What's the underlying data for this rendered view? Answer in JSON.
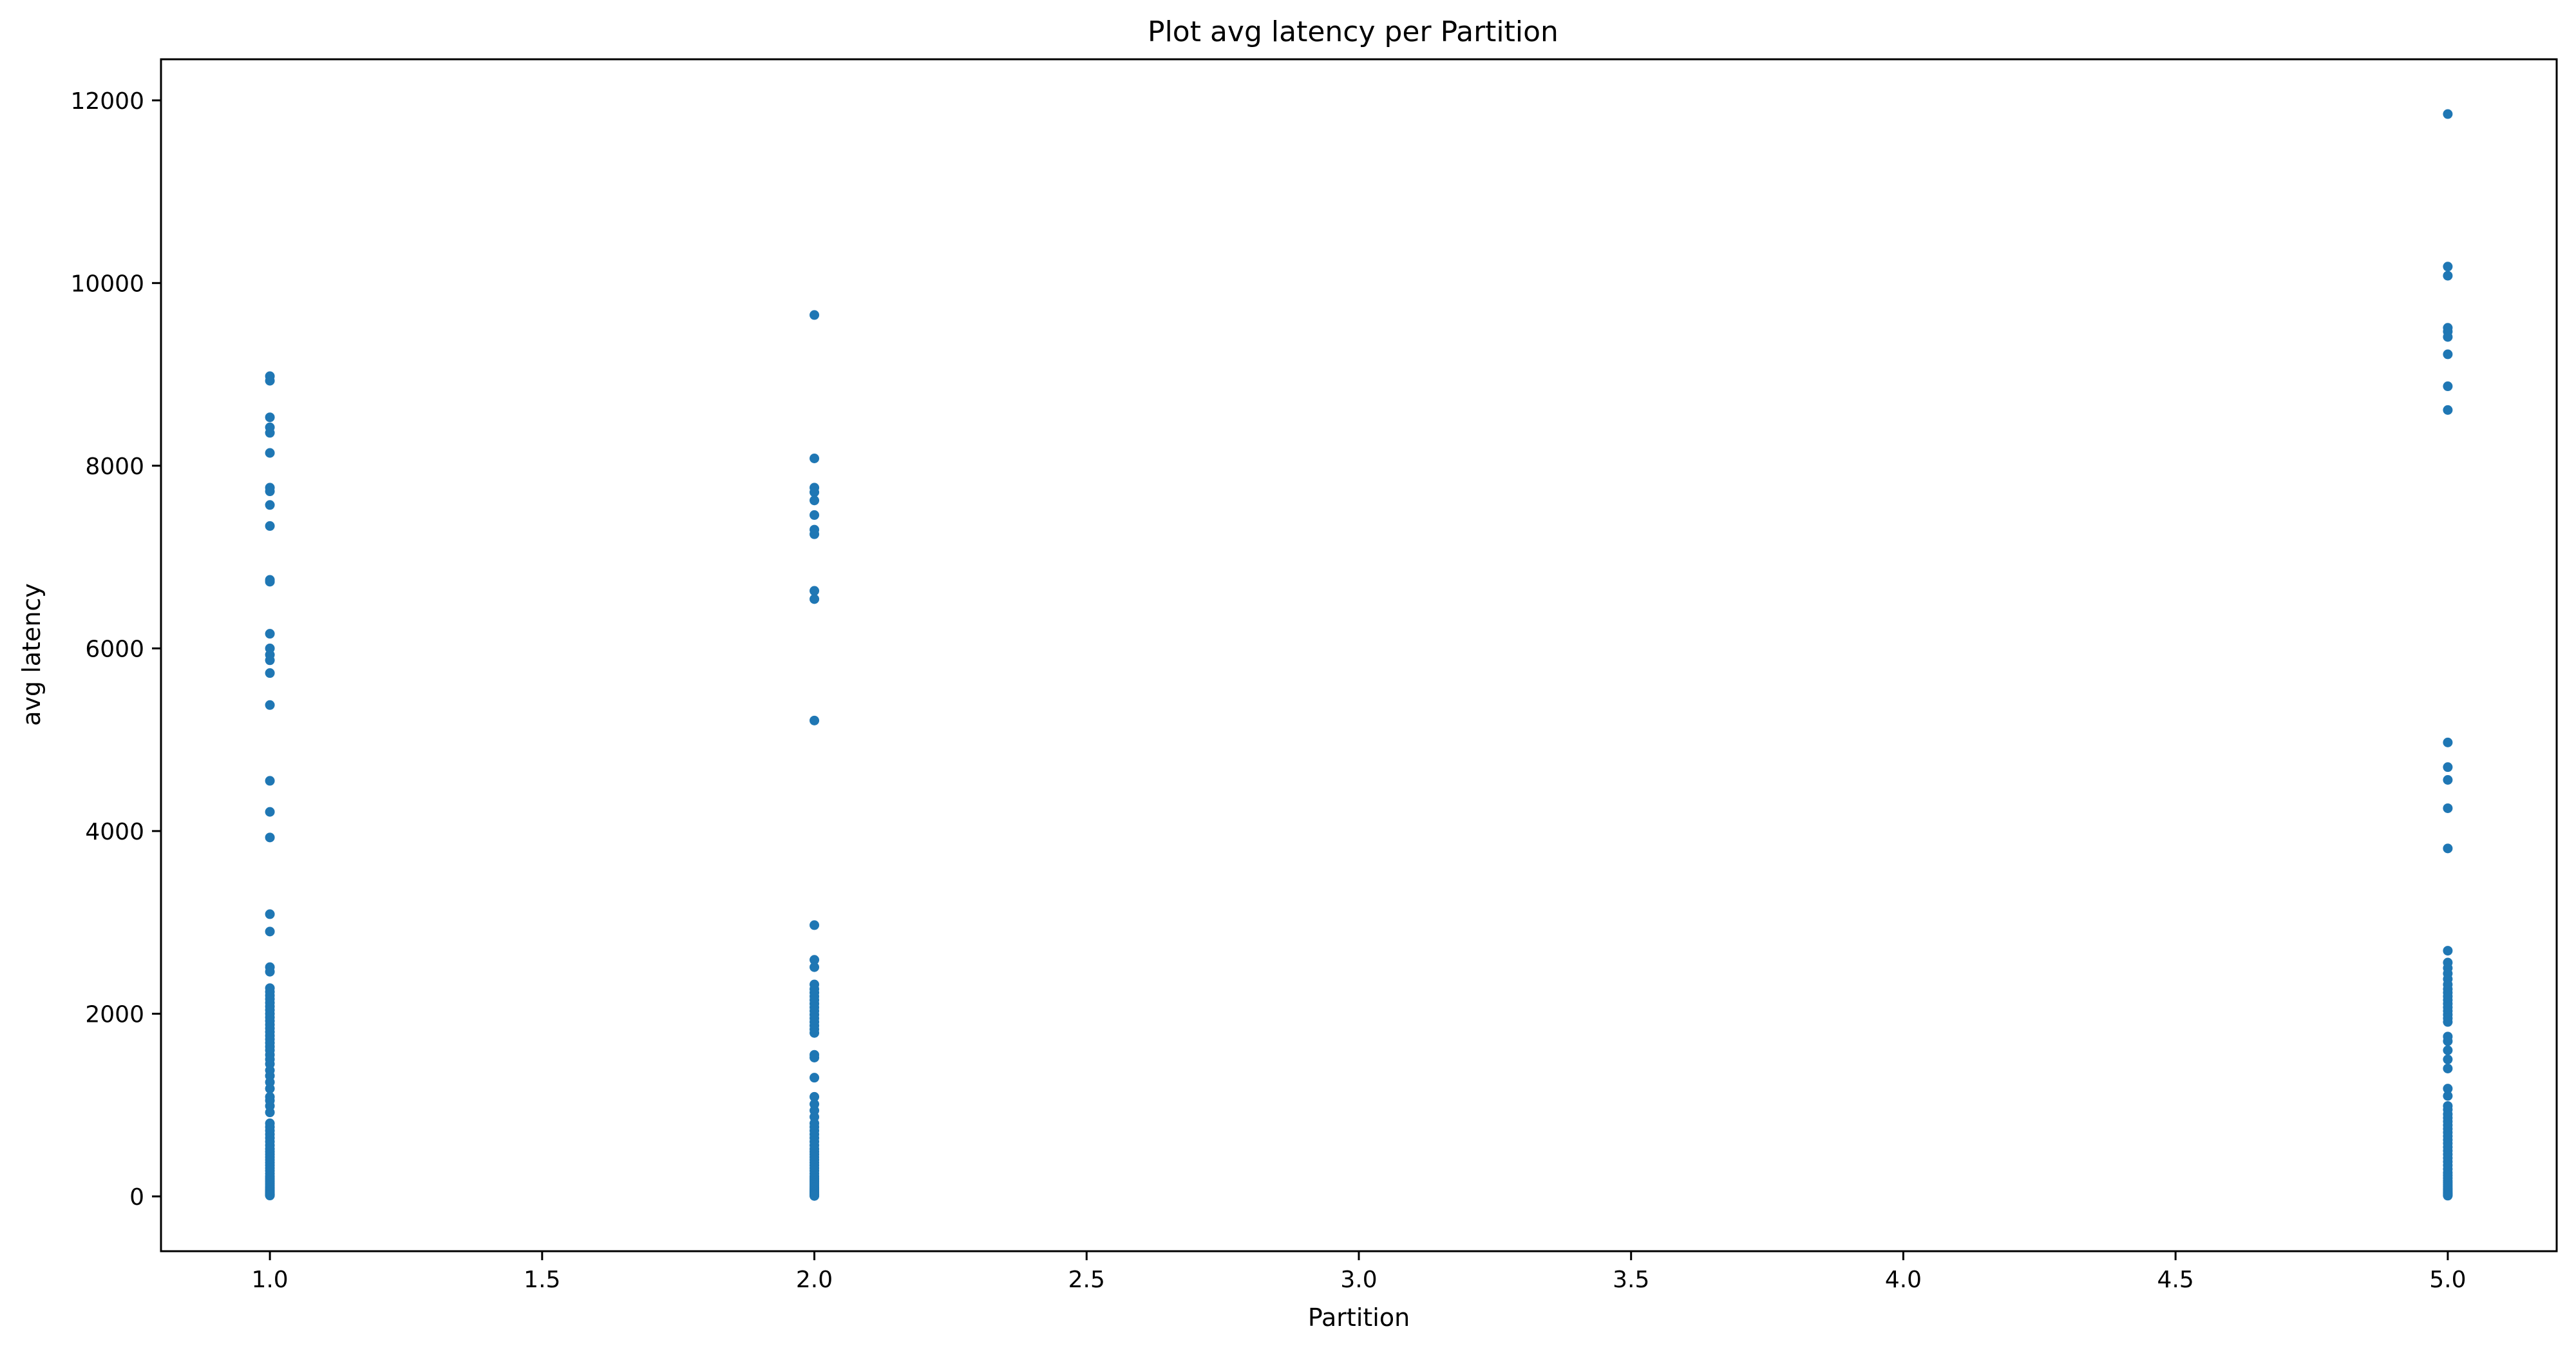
{
  "chart_data": {
    "type": "scatter",
    "title": "Plot avg latency per Partition",
    "xlabel": "Partition",
    "ylabel": "avg latency",
    "xlim": [
      0.8,
      5.2
    ],
    "ylim": [
      -600,
      12450
    ],
    "x_ticks": [
      "1.0",
      "1.5",
      "2.0",
      "2.5",
      "3.0",
      "3.5",
      "4.0",
      "4.5",
      "5.0"
    ],
    "y_ticks": [
      "0",
      "2000",
      "4000",
      "6000",
      "8000",
      "10000",
      "12000"
    ],
    "grid": false,
    "color": "#1f77b4",
    "series": [
      {
        "x": [
          1.0,
          1.0,
          1.0,
          1.0,
          1.0,
          1.0,
          1.0,
          1.0,
          1.0,
          1.0,
          1.0,
          1.0,
          1.0,
          1.0,
          1.0,
          1.0,
          1.0,
          1.0,
          1.0,
          1.0,
          1.0,
          1.0,
          1.0,
          1.0,
          1.0,
          1.0,
          1.0,
          1.0,
          1.0,
          1.0,
          1.0,
          1.0,
          1.0,
          1.0,
          1.0,
          1.0,
          1.0,
          1.0,
          1.0,
          1.0,
          1.0,
          1.0,
          1.0,
          1.0,
          1.0,
          1.0,
          1.0,
          1.0,
          1.0,
          1.0,
          1.0,
          1.0,
          1.0,
          1.0,
          1.0,
          1.0,
          1.0,
          1.0,
          1.0,
          1.0,
          1.0,
          1.0,
          1.0,
          1.0,
          1.0,
          1.0,
          1.0,
          1.0,
          1.0,
          1.0,
          1.0,
          1.0,
          1.0,
          1.0,
          1.0,
          1.0,
          1.0,
          1.0,
          1.0,
          1.0,
          1.0,
          1.0,
          1.0,
          1.0,
          1.0,
          1.0,
          1.0,
          1.0,
          2.0,
          2.0,
          2.0,
          2.0,
          2.0,
          2.0,
          2.0,
          2.0,
          2.0,
          2.0,
          2.0,
          2.0,
          2.0,
          2.0,
          2.0,
          2.0,
          2.0,
          2.0,
          2.0,
          2.0,
          2.0,
          2.0,
          2.0,
          2.0,
          2.0,
          2.0,
          2.0,
          2.0,
          2.0,
          2.0,
          2.0,
          2.0,
          2.0,
          2.0,
          2.0,
          2.0,
          2.0,
          2.0,
          2.0,
          2.0,
          2.0,
          2.0,
          2.0,
          2.0,
          2.0,
          2.0,
          2.0,
          2.0,
          2.0,
          2.0,
          2.0,
          2.0,
          2.0,
          2.0,
          2.0,
          2.0,
          2.0,
          2.0,
          2.0,
          2.0,
          2.0,
          2.0,
          2.0,
          2.0,
          2.0,
          2.0,
          2.0,
          2.0,
          2.0,
          2.0,
          5.0,
          5.0,
          5.0,
          5.0,
          5.0,
          5.0,
          5.0,
          5.0,
          5.0,
          5.0,
          5.0,
          5.0,
          5.0,
          5.0,
          5.0,
          5.0,
          5.0,
          5.0,
          5.0,
          5.0,
          5.0,
          5.0,
          5.0,
          5.0,
          5.0,
          5.0,
          5.0,
          5.0,
          5.0,
          5.0,
          5.0,
          5.0,
          5.0,
          5.0,
          5.0,
          5.0,
          5.0,
          5.0,
          5.0,
          5.0,
          5.0,
          5.0,
          5.0,
          5.0,
          5.0,
          5.0,
          5.0,
          5.0,
          5.0,
          5.0,
          5.0,
          5.0,
          5.0,
          5.0,
          5.0,
          5.0,
          5.0,
          5.0,
          5.0,
          5.0,
          5.0,
          5.0,
          5.0,
          5.0,
          5.0,
          5.0,
          5.0,
          5.0,
          5.0,
          5.0
        ],
        "y": [
          8980,
          8930,
          8530,
          8420,
          8360,
          8140,
          7760,
          7720,
          7570,
          7340,
          6750,
          6730,
          6160,
          6000,
          5930,
          5870,
          5730,
          5380,
          4550,
          4210,
          3930,
          3090,
          2900,
          2510,
          2460,
          2280,
          2240,
          2200,
          2160,
          2120,
          2080,
          2040,
          2000,
          1960,
          1920,
          1880,
          1840,
          1800,
          1760,
          1720,
          1680,
          1640,
          1600,
          1550,
          1500,
          1450,
          1380,
          1320,
          1250,
          1180,
          1090,
          1050,
          990,
          920,
          800,
          760,
          720,
          680,
          640,
          600,
          560,
          520,
          490,
          460,
          430,
          400,
          370,
          340,
          310,
          280,
          250,
          220,
          200,
          180,
          160,
          140,
          120,
          100,
          85,
          70,
          60,
          50,
          40,
          30,
          25,
          20,
          15,
          10,
          9650,
          8080,
          7760,
          7710,
          7620,
          7460,
          7300,
          7250,
          6630,
          6540,
          5210,
          2970,
          2590,
          2510,
          2320,
          2270,
          2230,
          2190,
          2150,
          2110,
          2070,
          2030,
          1990,
          1950,
          1910,
          1870,
          1830,
          1790,
          1550,
          1520,
          1300,
          1090,
          1010,
          940,
          870,
          800,
          760,
          720,
          680,
          640,
          600,
          560,
          520,
          490,
          460,
          430,
          400,
          370,
          340,
          310,
          280,
          250,
          220,
          200,
          180,
          160,
          140,
          120,
          100,
          85,
          70,
          60,
          50,
          40,
          30,
          25,
          20,
          15,
          10,
          5,
          11850,
          10180,
          10080,
          9510,
          9470,
          9410,
          9220,
          8870,
          8610,
          4970,
          4700,
          4560,
          4250,
          3810,
          2690,
          2560,
          2500,
          2440,
          2380,
          2320,
          2270,
          2230,
          2190,
          2150,
          2110,
          2070,
          2030,
          1990,
          1950,
          1910,
          1750,
          1700,
          1600,
          1500,
          1400,
          1180,
          1100,
          990,
          950,
          900,
          860,
          820,
          780,
          740,
          700,
          660,
          620,
          580,
          540,
          500,
          460,
          420,
          380,
          340,
          300,
          260,
          230,
          200,
          170,
          150,
          130,
          110,
          90,
          75,
          60,
          45,
          35,
          25,
          15,
          8
        ]
      }
    ]
  }
}
